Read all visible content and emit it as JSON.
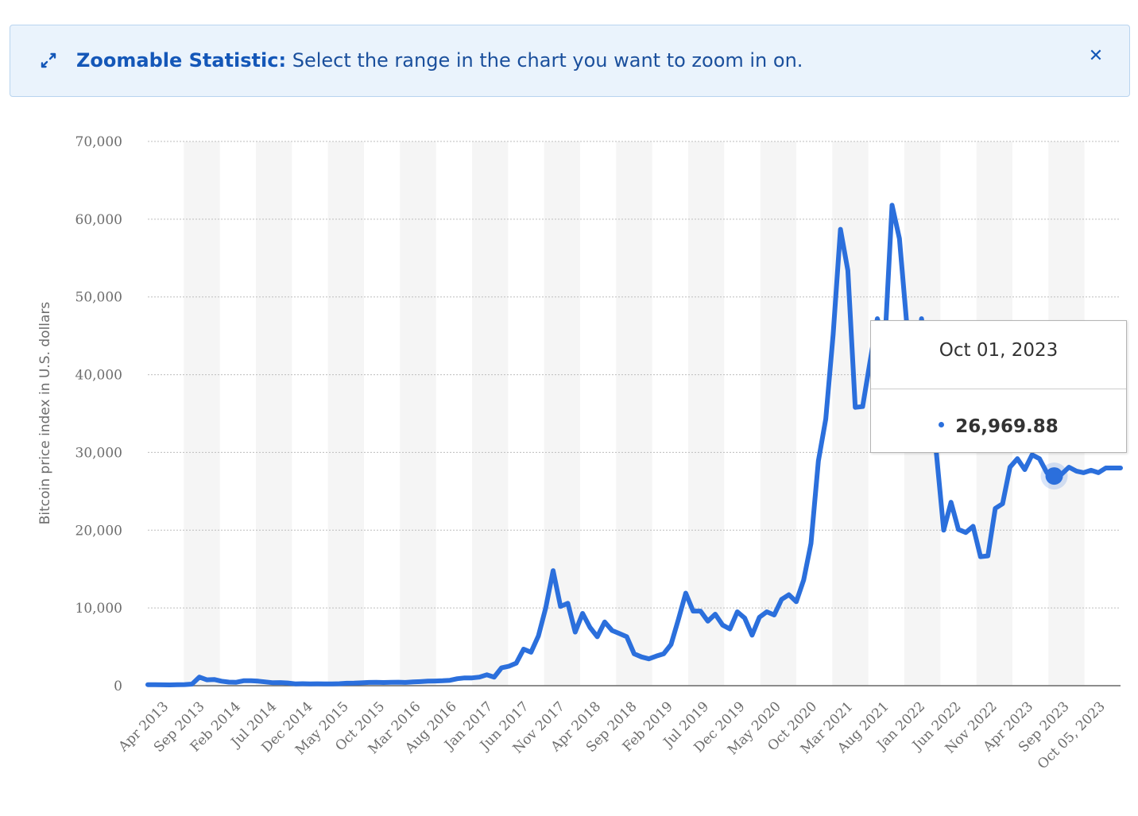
{
  "banner": {
    "title": "Zoomable Statistic:",
    "message": "Select the range in the chart you want to zoom in on.",
    "icon": "expand-arrows-icon",
    "close_icon": "close-icon"
  },
  "tooltip": {
    "date": "Oct 01, 2023",
    "value": "26,969.88"
  },
  "colors": {
    "line": "#2b6fdc",
    "banner_bg": "#eaf3fc",
    "banner_text": "#1457b8"
  },
  "chart_data": {
    "type": "line",
    "title": "",
    "xlabel": "",
    "ylabel": "Bitcoin price index in U.S. dollars",
    "ylim": [
      0,
      70000
    ],
    "yticks": [
      0,
      10000,
      20000,
      30000,
      40000,
      50000,
      60000,
      70000
    ],
    "ytick_labels": [
      "0",
      "10,000",
      "20,000",
      "30,000",
      "40,000",
      "50,000",
      "60,000",
      "70,000"
    ],
    "xtick_labels": [
      "Apr 2013",
      "Sep 2013",
      "Feb 2014",
      "Jul 2014",
      "Dec 2014",
      "May 2015",
      "Oct 2015",
      "Mar 2016",
      "Aug 2016",
      "Jan 2017",
      "Jun 2017",
      "Nov 2017",
      "Apr 2018",
      "Sep 2018",
      "Feb 2019",
      "Jul 2019",
      "Dec 2019",
      "May 2020",
      "Oct 2020",
      "Mar 2021",
      "Aug 2021",
      "Jan 2022",
      "Jun 2022",
      "Nov 2022",
      "Apr 2023",
      "Sep 2023",
      "Oct 05, 2023"
    ],
    "grid": true,
    "legend": "none",
    "highlight": {
      "x": "Oct 01, 2023",
      "y": 26969.88
    },
    "series": [
      {
        "values": [
          135,
          120,
          110,
          100,
          120,
          140,
          200,
          1100,
          760,
          800,
          580,
          460,
          440,
          630,
          640,
          580,
          480,
          380,
          400,
          350,
          240,
          260,
          240,
          250,
          230,
          240,
          260,
          320,
          330,
          370,
          420,
          440,
          410,
          430,
          450,
          420,
          480,
          520,
          580,
          600,
          630,
          690,
          900,
          1000,
          1000,
          1100,
          1400,
          1100,
          2300,
          2500,
          2900,
          4700,
          4300,
          6400,
          10000,
          14800,
          10200,
          10600,
          6900,
          9300,
          7500,
          6300,
          8200,
          7100,
          6700,
          6300,
          4100,
          3700,
          3450,
          3800,
          4100,
          5300,
          8500,
          11900,
          9600,
          9600,
          8300,
          9200,
          7800,
          7300,
          9500,
          8700,
          6500,
          8800,
          9500,
          9100,
          11100,
          11700,
          10800,
          13600,
          18300,
          28900,
          34300,
          45200,
          58700,
          53400,
          35800,
          35900,
          41600,
          47200,
          43800,
          61800,
          57500,
          46400,
          38500,
          47200,
          41100,
          30000,
          20000,
          23600,
          20100,
          19700,
          20500,
          16600,
          16700,
          22800,
          23400,
          28100,
          29200,
          27800,
          29700,
          29200,
          27400,
          26969.88,
          27200,
          28100,
          27600,
          27400,
          27700,
          27400,
          28000,
          28000,
          28000
        ]
      }
    ]
  }
}
